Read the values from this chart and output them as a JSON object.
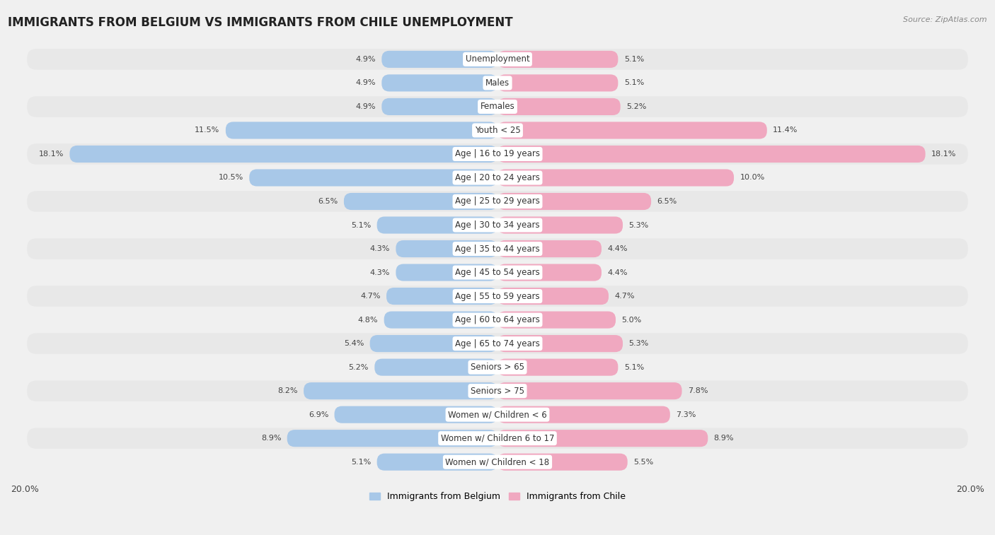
{
  "title": "IMMIGRANTS FROM BELGIUM VS IMMIGRANTS FROM CHILE UNEMPLOYMENT",
  "source": "Source: ZipAtlas.com",
  "categories": [
    "Unemployment",
    "Males",
    "Females",
    "Youth < 25",
    "Age | 16 to 19 years",
    "Age | 20 to 24 years",
    "Age | 25 to 29 years",
    "Age | 30 to 34 years",
    "Age | 35 to 44 years",
    "Age | 45 to 54 years",
    "Age | 55 to 59 years",
    "Age | 60 to 64 years",
    "Age | 65 to 74 years",
    "Seniors > 65",
    "Seniors > 75",
    "Women w/ Children < 6",
    "Women w/ Children 6 to 17",
    "Women w/ Children < 18"
  ],
  "belgium_values": [
    4.9,
    4.9,
    4.9,
    11.5,
    18.1,
    10.5,
    6.5,
    5.1,
    4.3,
    4.3,
    4.7,
    4.8,
    5.4,
    5.2,
    8.2,
    6.9,
    8.9,
    5.1
  ],
  "chile_values": [
    5.1,
    5.1,
    5.2,
    11.4,
    18.1,
    10.0,
    6.5,
    5.3,
    4.4,
    4.4,
    4.7,
    5.0,
    5.3,
    5.1,
    7.8,
    7.3,
    8.9,
    5.5
  ],
  "belgium_color": "#a8c8e8",
  "chile_color": "#f0a8c0",
  "row_color_even": "#e8e8e8",
  "row_color_odd": "#f5f5f5",
  "background_color": "#f0f0f0",
  "max_value": 20.0,
  "legend_belgium": "Immigrants from Belgium",
  "legend_chile": "Immigrants from Chile",
  "title_fontsize": 12,
  "label_fontsize": 8.5,
  "value_fontsize": 8.0,
  "xtick_left_label": "20.0%",
  "xtick_right_label": "20.0%"
}
